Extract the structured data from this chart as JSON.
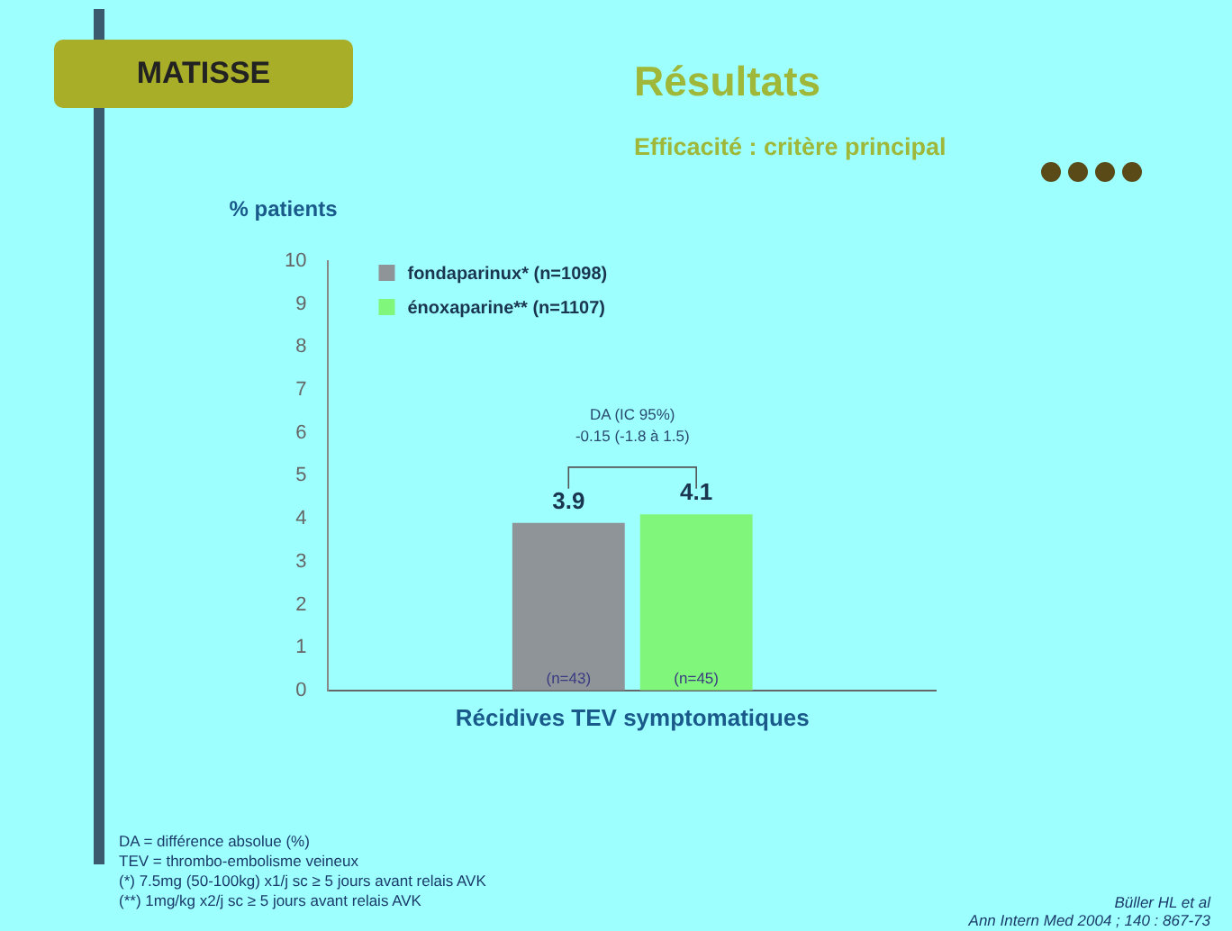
{
  "chart_data": {
    "type": "bar",
    "title": "Résultats",
    "subtitle": "Efficacité : critère principal",
    "ylabel": "% patients",
    "categories": [
      "Récidives TEV symptomatiques"
    ],
    "series": [
      {
        "name": "fondaparinux* (n=1098)",
        "color": "#8f9499",
        "values": [
          3.9
        ]
      },
      {
        "name": "énoxaparine** (n=1107)",
        "color": "#80f77a",
        "values": [
          4.1
        ]
      }
    ],
    "ylim": [
      0,
      10
    ],
    "yticks": [
      0,
      1,
      2,
      3,
      4,
      5,
      6,
      7,
      8,
      9,
      10
    ],
    "grid": false,
    "legend": "top left",
    "data_labels": true,
    "annotations": [
      "MATISSE",
      "DA (IC 95%)",
      "-0.15 (-1.8 à 1.5)",
      "(n=43)",
      "(n=45)",
      "DA = différence absolue (%)",
      "TEV = thrombo-embolisme veineux",
      "(*) 7.5mg (50-100kg) x1/j sc ≥ 5 jours avant relais AVK",
      "(**) 1mg/kg x2/j sc ≥ 5 jours avant relais AVK",
      "Büller HL et al",
      "Ann Intern Med 2004 ; 140 : 867-73"
    ]
  }
}
